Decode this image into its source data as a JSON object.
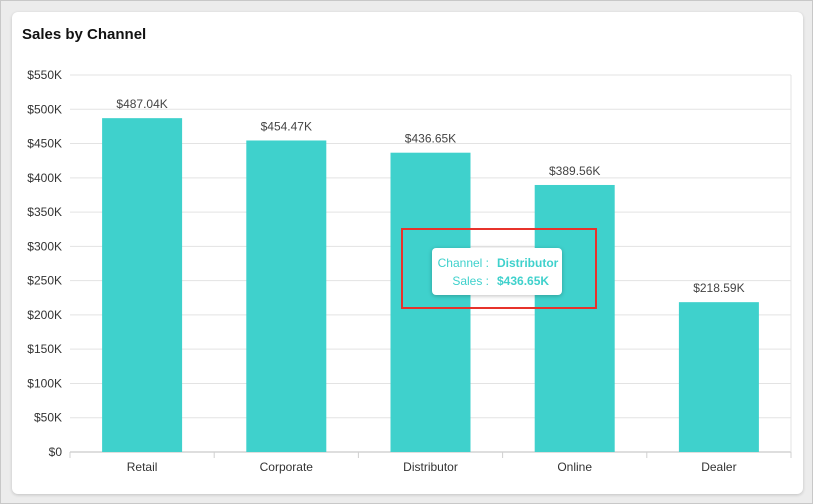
{
  "card": {
    "title": "Sales by Channel"
  },
  "tooltip": {
    "channel_key": "Channel :",
    "channel_value": "Distributor",
    "sales_key": "Sales :",
    "sales_value": "$436.65K"
  },
  "colors": {
    "bar": "#3fd1cc",
    "grid": "#e3e3e3",
    "highlight": "#e8322b"
  },
  "chart_data": {
    "type": "bar",
    "title": "Sales by Channel",
    "xlabel": "",
    "ylabel": "",
    "categories": [
      "Retail",
      "Corporate",
      "Distributor",
      "Online",
      "Dealer"
    ],
    "values": [
      487040,
      454470,
      436650,
      389560,
      218590
    ],
    "data_labels": [
      "$487.04K",
      "$454.47K",
      "$436.65K",
      "$389.56K",
      "$218.59K"
    ],
    "ylim": [
      0,
      550000
    ],
    "yticks": [
      0,
      50000,
      100000,
      150000,
      200000,
      250000,
      300000,
      350000,
      400000,
      450000,
      500000,
      550000
    ],
    "ytick_labels": [
      "$0",
      "$50K",
      "$100K",
      "$150K",
      "$200K",
      "$250K",
      "$300K",
      "$350K",
      "$400K",
      "$450K",
      "$500K",
      "$550K"
    ],
    "grid": true,
    "legend": "none"
  }
}
